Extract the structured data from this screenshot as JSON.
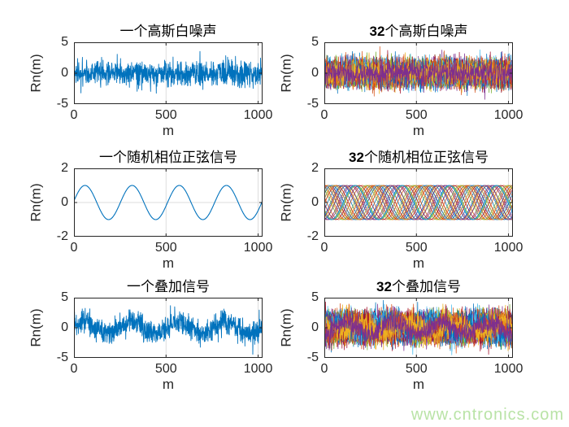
{
  "figure": {
    "background": "#ffffff",
    "watermark": {
      "text": "www.cntronics.com",
      "color": "#b9e3a6"
    }
  },
  "style": {
    "axis_color": "#262626",
    "grid_color": "#dcdcdc",
    "text_color": "#262626",
    "single_line_color": "#0072BD",
    "palette": [
      "#0072BD",
      "#D95319",
      "#EDB120",
      "#7E2F8E",
      "#77AC30",
      "#4DBEEE",
      "#A2142F"
    ]
  },
  "chart_data": [
    {
      "type": "line",
      "title": "一个高斯白噪声",
      "title_bold": "",
      "title_rest": "一个高斯白噪声",
      "xlabel": "m",
      "ylabel": "Rn(m)",
      "xlim": [
        0,
        1024
      ],
      "ylim": [
        -5,
        5
      ],
      "xticks": [
        0,
        500,
        1000
      ],
      "yticks": [
        -5,
        0,
        5
      ],
      "grid": true,
      "legend": null,
      "color": "#0072BD",
      "signal": {
        "kind": "gaussian_noise",
        "n_series": 1,
        "n_points": 1024,
        "sigma": 1,
        "seed": 7
      }
    },
    {
      "type": "line",
      "title": "32个高斯白噪声",
      "title_bold": "32",
      "title_rest": "个高斯白噪声",
      "xlabel": "m",
      "ylabel": "Rn(m)",
      "xlim": [
        0,
        1024
      ],
      "ylim": [
        -5,
        5
      ],
      "xticks": [
        0,
        500,
        1000
      ],
      "yticks": [
        -5,
        0,
        5
      ],
      "grid": true,
      "legend": null,
      "color": null,
      "signal": {
        "kind": "gaussian_noise",
        "n_series": 32,
        "n_points": 768,
        "sigma": 1,
        "seed": 101
      }
    },
    {
      "type": "line",
      "title": "一个随机相位正弦信号",
      "title_bold": "",
      "title_rest": "一个随机相位正弦信号",
      "xlabel": "m",
      "ylabel": "Rn(m)",
      "xlim": [
        0,
        1024
      ],
      "ylim": [
        -2,
        2
      ],
      "xticks": [
        0,
        500,
        1000
      ],
      "yticks": [
        -2,
        0,
        2
      ],
      "grid": true,
      "legend": null,
      "color": "#0072BD",
      "signal": {
        "kind": "sine_random_phase",
        "n_series": 1,
        "n_points": 1024,
        "amplitude": 1,
        "period": 256,
        "phase": 0.1,
        "seed": 23
      }
    },
    {
      "type": "line",
      "title": "32个随机相位正弦信号",
      "title_bold": "32",
      "title_rest": "个随机相位正弦信号",
      "xlabel": "m",
      "ylabel": "Rn(m)",
      "xlim": [
        0,
        1024
      ],
      "ylim": [
        -2,
        2
      ],
      "xticks": [
        0,
        500,
        1000
      ],
      "yticks": [
        -2,
        0,
        2
      ],
      "grid": true,
      "legend": null,
      "color": null,
      "signal": {
        "kind": "sine_random_phase",
        "n_series": 32,
        "n_points": 768,
        "amplitude": 1,
        "period": 256,
        "seed": 303
      }
    },
    {
      "type": "line",
      "title": "一个叠加信号",
      "title_bold": "",
      "title_rest": "一个叠加信号",
      "xlabel": "m",
      "ylabel": "Rn(m)",
      "xlim": [
        0,
        1024
      ],
      "ylim": [
        -5,
        5
      ],
      "xticks": [
        0,
        500,
        1000
      ],
      "yticks": [
        -5,
        0,
        5
      ],
      "grid": true,
      "legend": null,
      "color": "#0072BD",
      "signal": {
        "kind": "sine_plus_noise",
        "n_series": 1,
        "n_points": 1024,
        "amplitude": 1,
        "period": 256,
        "phase": 0.2,
        "sigma": 1,
        "seed": 99
      }
    },
    {
      "type": "line",
      "title": "32个叠加信号",
      "title_bold": "32",
      "title_rest": "个叠加信号",
      "xlabel": "m",
      "ylabel": "Rn(m)",
      "xlim": [
        0,
        1024
      ],
      "ylim": [
        -5,
        5
      ],
      "xticks": [
        0,
        500,
        1000
      ],
      "yticks": [
        -5,
        0,
        5
      ],
      "grid": true,
      "legend": null,
      "color": null,
      "signal": {
        "kind": "sine_plus_noise",
        "n_series": 32,
        "n_points": 768,
        "amplitude": 1,
        "period": 256,
        "sigma": 1,
        "seed": 505
      }
    }
  ]
}
